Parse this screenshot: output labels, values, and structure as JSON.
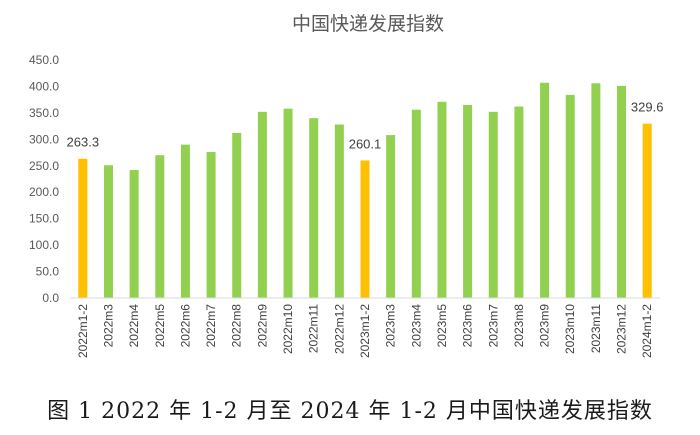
{
  "caption": "图 1 2022 年 1-2 月至 2024 年 1-2 月中国快递发展指数",
  "chart_data": {
    "type": "bar",
    "title": "中国快递发展指数",
    "xlabel": "",
    "ylabel": "",
    "ylim": [
      0,
      450
    ],
    "yticks": [
      "0.0",
      "50.0",
      "100.0",
      "150.0",
      "200.0",
      "250.0",
      "300.0",
      "350.0",
      "400.0",
      "450.0"
    ],
    "grid": false,
    "legend": "none",
    "categories": [
      "2022m1-2",
      "2022m3",
      "2022m4",
      "2022m5",
      "2022m6",
      "2022m7",
      "2022m8",
      "2022m9",
      "2022m10",
      "2022m11",
      "2022m12",
      "2023m1-2",
      "2023m3",
      "2023m4",
      "2023m5",
      "2023m6",
      "2023m7",
      "2023m8",
      "2023m9",
      "2023m10",
      "2023m11",
      "2023m12",
      "2024m1-2"
    ],
    "values": [
      263.3,
      251,
      242,
      270,
      290,
      276,
      312,
      352,
      358,
      340,
      328,
      260.1,
      308,
      356,
      371,
      365,
      352,
      362,
      407,
      384,
      406,
      401,
      329.6
    ],
    "highlight_indices": [
      0,
      11,
      22
    ],
    "data_labels": [
      {
        "index": 0,
        "text": "263.3"
      },
      {
        "index": 11,
        "text": "260.1"
      },
      {
        "index": 22,
        "text": "329.6"
      }
    ],
    "colors": {
      "normal": "#92D050",
      "highlight": "#FFC000"
    }
  }
}
